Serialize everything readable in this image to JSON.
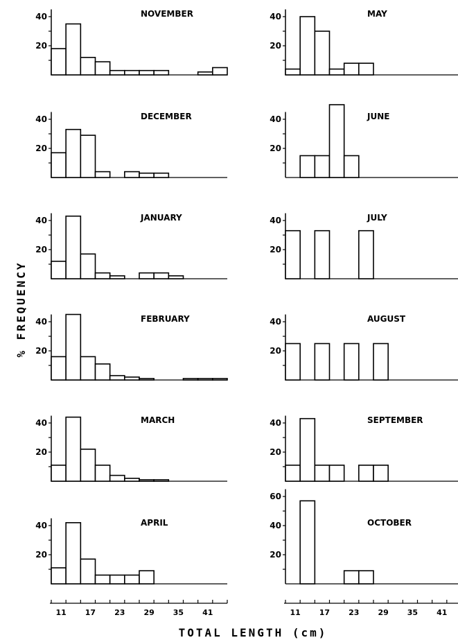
{
  "colors": {
    "ink": "#000000",
    "paper": "#ffffff"
  },
  "chart_data": {
    "type": "bar",
    "ylabel": "% FREQUENCY",
    "xlabel": "TOTAL LENGTH (cm)",
    "x_tick_labels": [
      "11",
      "17",
      "23",
      "29",
      "35",
      "41"
    ],
    "bin_starts_cm": [
      9,
      12,
      15,
      18,
      21,
      24,
      27,
      30,
      33,
      36,
      39,
      42
    ],
    "panels": [
      {
        "title": "NOVEMBER",
        "yticks": [
          "20",
          "40"
        ],
        "values": [
          18,
          35,
          12,
          9,
          3,
          3,
          3,
          3,
          0,
          0,
          2,
          5
        ]
      },
      {
        "title": "DECEMBER",
        "yticks": [
          "20",
          "40"
        ],
        "values": [
          17,
          33,
          29,
          4,
          0,
          4,
          3,
          3,
          0,
          0,
          0,
          0
        ]
      },
      {
        "title": "JANUARY",
        "yticks": [
          "20",
          "40"
        ],
        "values": [
          12,
          43,
          17,
          4,
          2,
          0,
          4,
          4,
          2,
          0,
          0,
          0
        ]
      },
      {
        "title": "FEBRUARY",
        "yticks": [
          "20",
          "40"
        ],
        "values": [
          16,
          45,
          16,
          11,
          3,
          2,
          1,
          0,
          0,
          1,
          1,
          1
        ]
      },
      {
        "title": "MARCH",
        "yticks": [
          "20",
          "40"
        ],
        "values": [
          11,
          44,
          22,
          11,
          4,
          2,
          1,
          1,
          0,
          0,
          0,
          0
        ]
      },
      {
        "title": "APRIL",
        "yticks": [
          "20",
          "40"
        ],
        "values": [
          11,
          42,
          17,
          6,
          6,
          6,
          9,
          0,
          0,
          0,
          0,
          0
        ]
      },
      {
        "title": "MAY",
        "yticks": [
          "20",
          "40"
        ],
        "values": [
          4,
          40,
          30,
          4,
          8,
          8,
          0,
          0,
          0,
          0,
          0,
          0
        ]
      },
      {
        "title": "JUNE",
        "yticks": [
          "20",
          "40"
        ],
        "values": [
          0,
          15,
          15,
          50,
          15,
          0,
          0,
          0,
          0,
          0,
          0,
          0
        ]
      },
      {
        "title": "JULY",
        "yticks": [
          "20",
          "40"
        ],
        "values": [
          33,
          0,
          33,
          0,
          0,
          33,
          0,
          0,
          0,
          0,
          0,
          0
        ]
      },
      {
        "title": "AUGUST",
        "yticks": [
          "20",
          "40"
        ],
        "values": [
          25,
          0,
          25,
          0,
          25,
          0,
          25,
          0,
          0,
          0,
          0,
          0
        ]
      },
      {
        "title": "SEPTEMBER",
        "yticks": [
          "20",
          "40"
        ],
        "values": [
          11,
          43,
          11,
          11,
          0,
          11,
          11,
          0,
          0,
          0,
          0,
          0
        ]
      },
      {
        "title": "OCTOBER",
        "yticks": [
          "20",
          "40",
          "60"
        ],
        "values": [
          0,
          57,
          0,
          0,
          9,
          9,
          0,
          0,
          0,
          0,
          0,
          0
        ]
      }
    ]
  }
}
